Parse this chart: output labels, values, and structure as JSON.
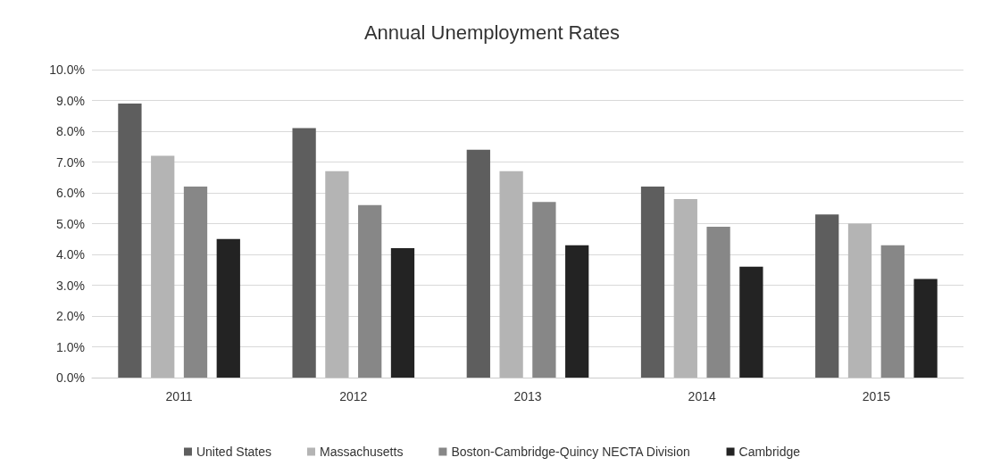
{
  "chart_data": {
    "type": "bar",
    "title": "Annual Unemployment Rates",
    "categories": [
      "2011",
      "2012",
      "2013",
      "2014",
      "2015"
    ],
    "series": [
      {
        "name": "United States",
        "color": "#5e5e5e",
        "values": [
          8.9,
          8.1,
          7.4,
          6.2,
          5.3
        ]
      },
      {
        "name": "Massachusetts",
        "color": "#b4b4b4",
        "values": [
          7.2,
          6.7,
          6.7,
          5.8,
          5.0
        ]
      },
      {
        "name": "Boston-Cambridge-Quincy NECTA Division",
        "color": "#878787",
        "values": [
          6.2,
          5.6,
          5.7,
          4.9,
          4.3
        ]
      },
      {
        "name": "Cambridge",
        "color": "#232323",
        "values": [
          4.5,
          4.2,
          4.3,
          3.6,
          3.2
        ]
      }
    ],
    "ylim": [
      0,
      10
    ],
    "yticks": [
      {
        "value": 0,
        "label": "0.0%"
      },
      {
        "value": 1,
        "label": "1.0%"
      },
      {
        "value": 2,
        "label": "2.0%"
      },
      {
        "value": 3,
        "label": "3.0%"
      },
      {
        "value": 4,
        "label": "4.0%"
      },
      {
        "value": 5,
        "label": "5.0%"
      },
      {
        "value": 6,
        "label": "6.0%"
      },
      {
        "value": 7,
        "label": "7.0%"
      },
      {
        "value": 8,
        "label": "8.0%"
      },
      {
        "value": 9,
        "label": "9.0%"
      },
      {
        "value": 10,
        "label": "10.0%"
      }
    ],
    "grid": "y",
    "legend": "bottom"
  }
}
